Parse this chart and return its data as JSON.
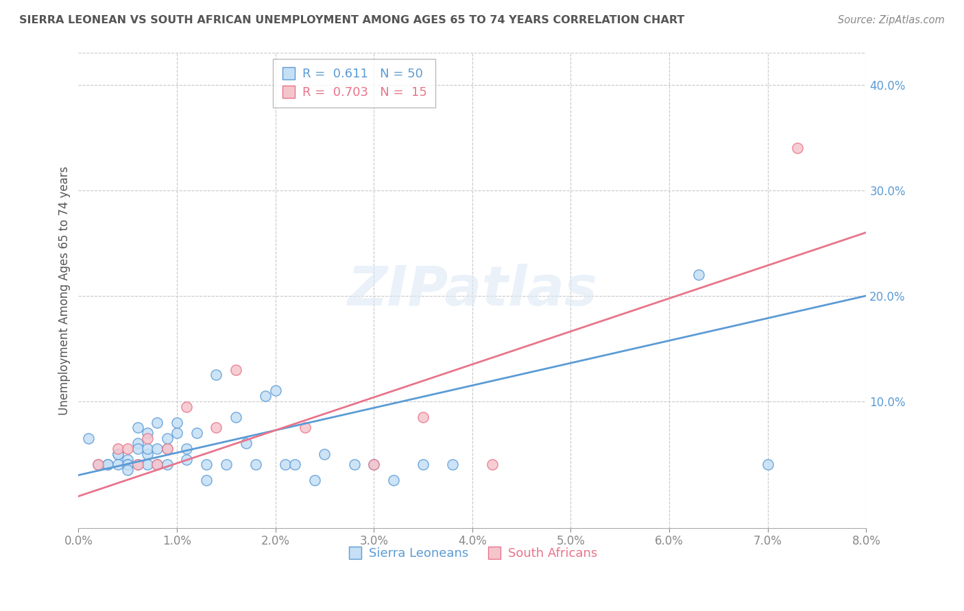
{
  "title": "SIERRA LEONEAN VS SOUTH AFRICAN UNEMPLOYMENT AMONG AGES 65 TO 74 YEARS CORRELATION CHART",
  "source": "Source: ZipAtlas.com",
  "ylabel": "Unemployment Among Ages 65 to 74 years",
  "xlim": [
    0.0,
    0.08
  ],
  "ylim": [
    -0.02,
    0.43
  ],
  "xticks": [
    0.0,
    0.01,
    0.02,
    0.03,
    0.04,
    0.05,
    0.06,
    0.07,
    0.08
  ],
  "yticks": [
    0.1,
    0.2,
    0.3,
    0.4
  ],
  "background_color": "#ffffff",
  "grid_color": "#c8c8c8",
  "title_color": "#555555",
  "sierra_R": 0.611,
  "sierra_N": 50,
  "southafrica_R": 0.703,
  "southafrica_N": 15,
  "sierra_x": [
    0.001,
    0.002,
    0.003,
    0.003,
    0.004,
    0.004,
    0.004,
    0.005,
    0.005,
    0.005,
    0.005,
    0.006,
    0.006,
    0.006,
    0.006,
    0.007,
    0.007,
    0.007,
    0.007,
    0.008,
    0.008,
    0.008,
    0.009,
    0.009,
    0.009,
    0.01,
    0.01,
    0.011,
    0.011,
    0.012,
    0.013,
    0.013,
    0.014,
    0.015,
    0.016,
    0.017,
    0.018,
    0.019,
    0.02,
    0.021,
    0.022,
    0.024,
    0.025,
    0.028,
    0.03,
    0.032,
    0.035,
    0.038,
    0.063,
    0.07
  ],
  "sierra_y": [
    0.065,
    0.04,
    0.04,
    0.04,
    0.05,
    0.05,
    0.04,
    0.045,
    0.04,
    0.04,
    0.035,
    0.06,
    0.075,
    0.055,
    0.04,
    0.04,
    0.05,
    0.055,
    0.07,
    0.08,
    0.04,
    0.055,
    0.04,
    0.055,
    0.065,
    0.07,
    0.08,
    0.045,
    0.055,
    0.07,
    0.025,
    0.04,
    0.125,
    0.04,
    0.085,
    0.06,
    0.04,
    0.105,
    0.11,
    0.04,
    0.04,
    0.025,
    0.05,
    0.04,
    0.04,
    0.025,
    0.04,
    0.04,
    0.22,
    0.04
  ],
  "sa_x": [
    0.002,
    0.004,
    0.005,
    0.006,
    0.007,
    0.008,
    0.009,
    0.011,
    0.014,
    0.016,
    0.023,
    0.03,
    0.035,
    0.042,
    0.073
  ],
  "sa_y": [
    0.04,
    0.055,
    0.055,
    0.04,
    0.065,
    0.04,
    0.055,
    0.095,
    0.075,
    0.13,
    0.075,
    0.04,
    0.085,
    0.04,
    0.34
  ],
  "sierra_line_x0": 0.0,
  "sierra_line_y0": 0.03,
  "sierra_line_x1": 0.08,
  "sierra_line_y1": 0.2,
  "sa_line_x0": 0.0,
  "sa_line_y0": 0.01,
  "sa_line_x1": 0.08,
  "sa_line_y1": 0.26,
  "legend_box_color": "#ffffff",
  "legend_border_color": "#aaaaaa",
  "blue_color": "#5b9bd5",
  "blue_fill": "#c5dff5",
  "pink_color": "#e8748a",
  "pink_fill": "#f5c5cc"
}
